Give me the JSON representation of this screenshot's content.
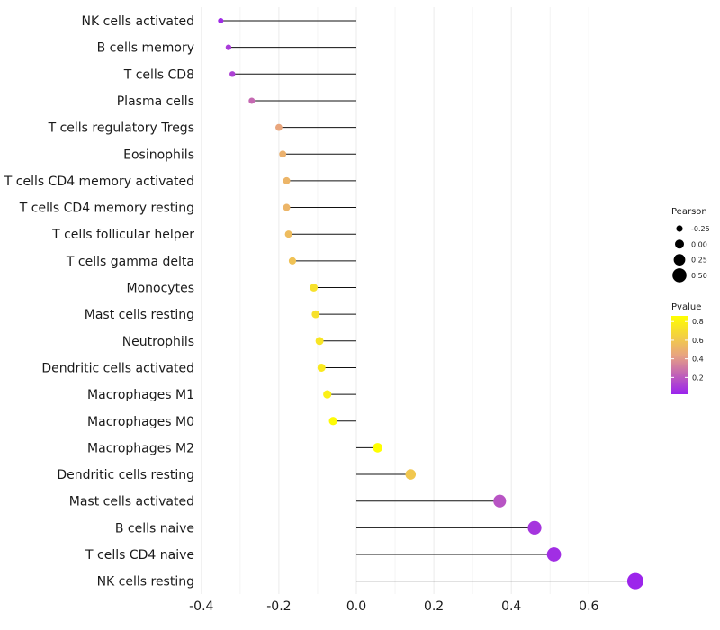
{
  "chart_data": {
    "type": "lollipop",
    "title": "",
    "xlabel": "",
    "ylabel": "",
    "xlim": [
      -0.4,
      0.73
    ],
    "x_ticks": [
      {
        "value": -0.4,
        "label": "-0.4"
      },
      {
        "value": -0.2,
        "label": "-0.2"
      },
      {
        "value": 0.0,
        "label": "0.0"
      },
      {
        "value": 0.2,
        "label": "0.2"
      },
      {
        "value": 0.4,
        "label": "0.4"
      },
      {
        "value": 0.6,
        "label": "0.6"
      }
    ],
    "grid": true,
    "items": [
      {
        "label": "NK cells activated",
        "pearson": -0.35,
        "pvalue": 0.05
      },
      {
        "label": "B cells memory",
        "pearson": -0.33,
        "pvalue": 0.1
      },
      {
        "label": "T cells CD8",
        "pearson": -0.32,
        "pvalue": 0.12
      },
      {
        "label": "Plasma cells",
        "pearson": -0.27,
        "pvalue": 0.25
      },
      {
        "label": "T cells regulatory  Tregs",
        "pearson": -0.2,
        "pvalue": 0.45
      },
      {
        "label": "Eosinophils",
        "pearson": -0.19,
        "pvalue": 0.5
      },
      {
        "label": "T cells CD4 memory activated",
        "pearson": -0.18,
        "pvalue": 0.52
      },
      {
        "label": "T cells CD4 memory resting",
        "pearson": -0.18,
        "pvalue": 0.52
      },
      {
        "label": "T cells follicular helper",
        "pearson": -0.175,
        "pvalue": 0.55
      },
      {
        "label": "T cells gamma delta",
        "pearson": -0.165,
        "pvalue": 0.58
      },
      {
        "label": "Monocytes",
        "pearson": -0.11,
        "pvalue": 0.72
      },
      {
        "label": "Mast cells resting",
        "pearson": -0.105,
        "pvalue": 0.72
      },
      {
        "label": "Neutrophils",
        "pearson": -0.095,
        "pvalue": 0.74
      },
      {
        "label": "Dendritic cells activated",
        "pearson": -0.09,
        "pvalue": 0.76
      },
      {
        "label": "Macrophages M1",
        "pearson": -0.075,
        "pvalue": 0.79
      },
      {
        "label": "Macrophages M0",
        "pearson": -0.06,
        "pvalue": 0.84
      },
      {
        "label": "Macrophages M2",
        "pearson": 0.055,
        "pvalue": 0.86
      },
      {
        "label": "Dendritic cells resting",
        "pearson": 0.14,
        "pvalue": 0.6
      },
      {
        "label": "Mast cells activated",
        "pearson": 0.37,
        "pvalue": 0.18
      },
      {
        "label": "B cells naive",
        "pearson": 0.46,
        "pvalue": 0.08
      },
      {
        "label": "T cells CD4 naive",
        "pearson": 0.51,
        "pvalue": 0.06
      },
      {
        "label": "NK cells resting",
        "pearson": 0.72,
        "pvalue": 0.03
      }
    ],
    "legend_pearson": {
      "title": "Pearson",
      "entries": [
        {
          "value": -0.25,
          "label": "-0.25"
        },
        {
          "value": 0.0,
          "label": "0.00"
        },
        {
          "value": 0.25,
          "label": "0.25"
        },
        {
          "value": 0.5,
          "label": "0.50"
        }
      ]
    },
    "legend_pvalue": {
      "title": "Pvalue",
      "range": [
        0.02,
        0.86
      ],
      "ticks": [
        {
          "value": 0.8,
          "label": "0.8"
        },
        {
          "value": 0.6,
          "label": "0.6"
        },
        {
          "value": 0.4,
          "label": "0.4"
        },
        {
          "value": 0.2,
          "label": "0.2"
        }
      ],
      "colors": {
        "low": "#9a22ee",
        "mid": "#e8a480",
        "high": "#ffff00"
      }
    }
  }
}
